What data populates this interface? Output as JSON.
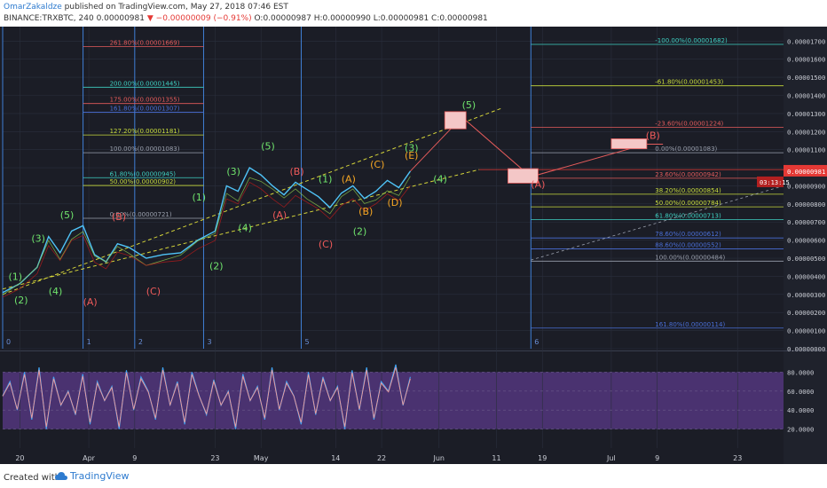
{
  "header": {
    "author": "OmarZakaldze",
    "published": "published on TradingView.com, May 27, 2018 07:46 EST",
    "symbol": "BINANCE:TRXBTC, 240",
    "last": "0.00000981",
    "change": "−0.00000009 (−0.91%)",
    "ohlc": "O:0.00000987 H:0.00000990 L:0.00000981 C:0.00000981"
  },
  "footer": {
    "created": "Created with",
    "brand": "TradingView"
  },
  "colors": {
    "background": "#1b1d26",
    "grid": "#2a2f3d",
    "wave_green": "#6fe36c",
    "wave_red": "#ef5a5a",
    "wave_orange": "#f5a623",
    "yellow_dash": "#d4d43a",
    "price_tag": "#e53935",
    "rsi_band": "#5b3a8a",
    "blue_line": "#3f7fd6"
  },
  "chart_data": [
    {
      "type": "line",
      "title": "",
      "price_axis": [
        "0.00001700",
        "0.00001600",
        "0.00001500",
        "0.00001400",
        "0.00001300",
        "0.00001200",
        "0.00001100",
        "0.00001000",
        "0.00000900",
        "0.00000800",
        "0.00000700",
        "0.00000600",
        "0.00000500",
        "0.00000400",
        "0.00000300",
        "0.00000200",
        "0.00000100",
        "0.00000000"
      ],
      "time_axis": [
        "20",
        "Apr",
        "9",
        "23",
        "May",
        "14",
        "22",
        "Jun",
        "11",
        "19",
        "Jul",
        "9",
        "23"
      ],
      "ylim": [
        0.0,
        1.78e-05
      ],
      "last_price": "0.00000981",
      "countdown": "03:13:15",
      "vertical_markers": [
        "0",
        "1",
        "2",
        "3",
        "5",
        "6"
      ],
      "price_series": [
        [
          "Mar 17",
          3.1e-06
        ],
        [
          "Mar 20",
          3.6e-06
        ],
        [
          "Mar 23",
          4.5e-06
        ],
        [
          "Mar 25",
          6.2e-06
        ],
        [
          "Mar 27",
          5.3e-06
        ],
        [
          "Mar 29",
          6.5e-06
        ],
        [
          "Mar 31",
          6.8e-06
        ],
        [
          "Apr 2",
          5.2e-06
        ],
        [
          "Apr 4",
          4.8e-06
        ],
        [
          "Apr 6",
          5.8e-06
        ],
        [
          "Apr 8",
          5.6e-06
        ],
        [
          "Apr 11",
          5e-06
        ],
        [
          "Apr 14",
          5.2e-06
        ],
        [
          "Apr 17",
          5.3e-06
        ],
        [
          "Apr 20",
          6e-06
        ],
        [
          "Apr 23",
          6.5e-06
        ],
        [
          "Apr 25",
          9e-06
        ],
        [
          "Apr 27",
          8.7e-06
        ],
        [
          "Apr 29",
          1e-05
        ],
        [
          "May 1",
          9.6e-06
        ],
        [
          "May 3",
          9e-06
        ],
        [
          "May 5",
          8.5e-06
        ],
        [
          "May 7",
          9.2e-06
        ],
        [
          "May 9",
          8.8e-06
        ],
        [
          "May 11",
          8.4e-06
        ],
        [
          "May 13",
          7.8e-06
        ],
        [
          "May 15",
          8.6e-06
        ],
        [
          "May 17",
          9e-06
        ],
        [
          "May 19",
          8.3e-06
        ],
        [
          "May 21",
          8.7e-06
        ],
        [
          "May 23",
          9.3e-06
        ],
        [
          "May 25",
          8.9e-06
        ],
        [
          "May 27",
          9.81e-06
        ]
      ],
      "fib_left": [
        {
          "label": "261.80%(0.00001669)",
          "color": "#e35b5b"
        },
        {
          "label": "200.00%(0.00001445)",
          "color": "#3ecfc1"
        },
        {
          "label": "175.00%(0.00001355)",
          "color": "#e35b5b"
        },
        {
          "label": "161.80%(0.00001307)",
          "color": "#4a6fd8"
        },
        {
          "label": "127.20%(0.00001181)",
          "color": "#c8dc3c"
        },
        {
          "label": "100.00%(0.00001083)",
          "color": "#9aa0ad"
        },
        {
          "label": "61.80%(0.00000945)",
          "color": "#3ecfc1"
        },
        {
          "label": "50.00%(0.00000902)",
          "color": "#c8dc3c"
        },
        {
          "label": "0.00%(0.00000721)",
          "color": "#9aa0ad"
        }
      ],
      "fib_right_top": [
        {
          "label": "-100.00%(0.00001682)",
          "color": "#3ecfc1"
        },
        {
          "label": "-61.80%(0.00001453)",
          "color": "#c8dc3c"
        },
        {
          "label": "-23.60%(0.00001224)",
          "color": "#e35b5b"
        },
        {
          "label": "0.00%(0.00001083)",
          "color": "#9aa0ad"
        },
        {
          "label": "23.60%(0.00000942)",
          "color": "#e35b5b"
        }
      ],
      "fib_right_bottom": [
        {
          "label": "38.20%(0.00000854)",
          "color": "#c8dc3c"
        },
        {
          "label": "50.00%(0.00000784)",
          "color": "#c8dc3c"
        },
        {
          "label": "61.80%(0.00000713)",
          "color": "#3ecfc1"
        },
        {
          "label": "78.60%(0.00000612)",
          "color": "#4a6fd8"
        },
        {
          "label": "88.60%(0.00000552)",
          "color": "#4a6fd8"
        },
        {
          "label": "100.00%(0.00000484)",
          "color": "#9aa0ad"
        },
        {
          "label": "161.80%(0.00000114)",
          "color": "#4a6fd8"
        }
      ],
      "wave_labels_green": [
        "(1)",
        "(2)",
        "(3)",
        "(4)",
        "(5)",
        "(1)",
        "(2)",
        "(3)",
        "(4)",
        "(5)",
        "(1)",
        "(2)",
        "(3)",
        "(4)",
        "(5)"
      ],
      "wave_labels_red": [
        "(A)",
        "(B)",
        "(C)",
        "(A)",
        "(B)",
        "(C)",
        "(A)",
        "(B)"
      ],
      "wave_labels_orange": [
        "(A)",
        "(B)",
        "(C)",
        "(D)",
        "(E)"
      ]
    },
    {
      "type": "line",
      "title": "",
      "indicator_axis": [
        "80.0000",
        "60.0000",
        "40.0000",
        "20.0000"
      ],
      "ylim": [
        0,
        100
      ],
      "band": [
        20,
        80
      ],
      "series": [
        {
          "values": [
            55,
            70,
            40,
            80,
            30,
            85,
            20,
            75,
            45,
            60,
            35,
            78,
            25,
            70,
            50,
            65,
            20,
            82,
            40,
            75,
            60,
            30,
            85,
            45,
            70,
            25,
            80,
            55,
            35,
            72,
            45,
            60,
            20,
            78,
            50,
            65,
            30,
            85,
            40,
            70,
            55,
            25,
            80,
            35,
            75,
            50,
            65,
            20,
            82,
            40,
            85,
            30,
            70,
            60,
            88,
            45,
            75
          ]
        }
      ]
    }
  ]
}
